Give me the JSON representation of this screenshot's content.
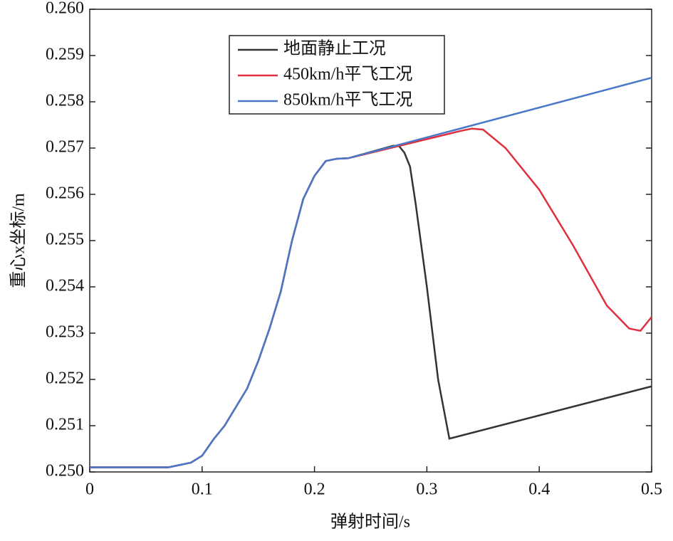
{
  "chart_data": {
    "type": "line",
    "xlabel": "弹射时间/s",
    "ylabel": "重心x坐标/m",
    "xlim": [
      0,
      0.5
    ],
    "xticks": [
      0,
      0.1,
      0.2,
      0.3,
      0.4,
      0.5
    ],
    "ylim": [
      0.25,
      0.26
    ],
    "yticks": [
      {
        "value": 0.25,
        "label": "0.250"
      },
      {
        "value": 0.251,
        "label": "0.251"
      },
      {
        "value": 0.252,
        "label": "0.252"
      },
      {
        "value": 0.253,
        "label": "0.253"
      },
      {
        "value": 0.254,
        "label": "0.254"
      },
      {
        "value": 0.255,
        "label": "0.255"
      },
      {
        "value": 0.256,
        "label": "0.256"
      },
      {
        "value": 0.257,
        "label": "0.257"
      },
      {
        "value": 0.258,
        "label": "0.258"
      },
      {
        "value": 0.259,
        "label": "0.259"
      },
      {
        "value": 0.26,
        "label": "0.260"
      }
    ],
    "legend": "upper center",
    "series": [
      {
        "name": "地面静止工况",
        "color": "#333333",
        "x": [
          0,
          0.07,
          0.08,
          0.09,
          0.1,
          0.11,
          0.12,
          0.13,
          0.14,
          0.15,
          0.16,
          0.17,
          0.18,
          0.19,
          0.2,
          0.21,
          0.22,
          0.23,
          0.27,
          0.275,
          0.28,
          0.285,
          0.29,
          0.3,
          0.31,
          0.32,
          0.5
        ],
        "values": [
          0.2501,
          0.2501,
          0.25015,
          0.2502,
          0.25035,
          0.2507,
          0.251,
          0.2514,
          0.2518,
          0.2524,
          0.2531,
          0.2539,
          0.255,
          0.2559,
          0.2564,
          0.25672,
          0.25677,
          0.25678,
          0.25705,
          0.25705,
          0.2569,
          0.2566,
          0.2558,
          0.254,
          0.252,
          0.25072,
          0.25185
        ]
      },
      {
        "name": "450km/h平飞工况",
        "color": "#e0303e",
        "x": [
          0,
          0.07,
          0.08,
          0.09,
          0.1,
          0.11,
          0.12,
          0.13,
          0.14,
          0.15,
          0.16,
          0.17,
          0.18,
          0.19,
          0.2,
          0.21,
          0.22,
          0.23,
          0.33,
          0.34,
          0.35,
          0.37,
          0.4,
          0.43,
          0.46,
          0.48,
          0.49,
          0.5
        ],
        "values": [
          0.2501,
          0.2501,
          0.25015,
          0.2502,
          0.25035,
          0.2507,
          0.251,
          0.2514,
          0.2518,
          0.2524,
          0.2531,
          0.2539,
          0.255,
          0.2559,
          0.2564,
          0.25672,
          0.25677,
          0.25678,
          0.25737,
          0.25742,
          0.2574,
          0.257,
          0.2561,
          0.2549,
          0.2536,
          0.2531,
          0.25305,
          0.25335
        ]
      },
      {
        "name": "850km/h平飞工况",
        "color": "#4a78c8",
        "x": [
          0,
          0.07,
          0.08,
          0.09,
          0.1,
          0.11,
          0.12,
          0.13,
          0.14,
          0.15,
          0.16,
          0.17,
          0.18,
          0.19,
          0.2,
          0.21,
          0.22,
          0.23,
          0.5
        ],
        "values": [
          0.2501,
          0.2501,
          0.25015,
          0.2502,
          0.25035,
          0.2507,
          0.251,
          0.2514,
          0.2518,
          0.2524,
          0.2531,
          0.2539,
          0.255,
          0.2559,
          0.2564,
          0.25672,
          0.25677,
          0.25678,
          0.25852
        ]
      }
    ]
  }
}
